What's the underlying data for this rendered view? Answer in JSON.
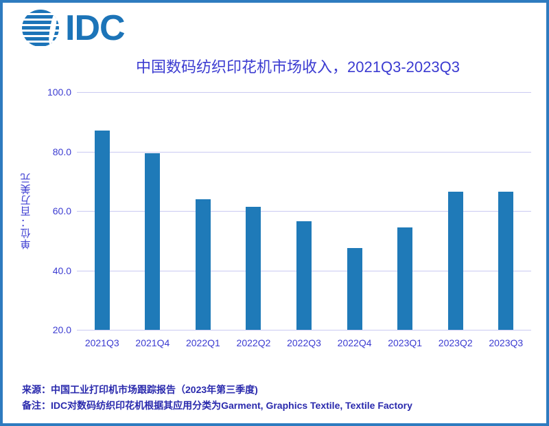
{
  "logo": {
    "text": "IDC",
    "globe_icon": "striped-globe-icon"
  },
  "title": {
    "text": "中国数码纺织印花机市场收入，2021Q3-2023Q3"
  },
  "chart_data": {
    "type": "bar",
    "title": "中国数码纺织印花机市场收入，2021Q3-2023Q3",
    "categories": [
      "2021Q3",
      "2021Q4",
      "2022Q1",
      "2022Q2",
      "2022Q3",
      "2022Q4",
      "2023Q1",
      "2023Q2",
      "2023Q3"
    ],
    "values": [
      87.0,
      79.5,
      64.0,
      61.5,
      56.5,
      47.5,
      54.5,
      66.5,
      66.5
    ],
    "xlabel": "",
    "ylabel": "单位：百万美元",
    "ylim": [
      20,
      100
    ],
    "ytick_labels": [
      "100.0",
      "80.0",
      "60.0",
      "40.0",
      "20.0"
    ],
    "grid": true,
    "legend": false
  },
  "footer": {
    "source_line": "来源：中国工业打印机市场跟踪报告（2023年第三季度)",
    "note_line": "备注：IDC对数码纺织印花机根据其应用分类为Garment, Graphics Textile, Textile Factory"
  },
  "colors": {
    "bar_fill": "#1f7ab8",
    "gridline": "#c9c9f2",
    "axis_text": "#3b3bd1",
    "title_text": "#3b3bd1",
    "footer_text": "#2a2aad",
    "logo_blue": "#1c74b8",
    "frame_border": "#2e7bbf"
  }
}
